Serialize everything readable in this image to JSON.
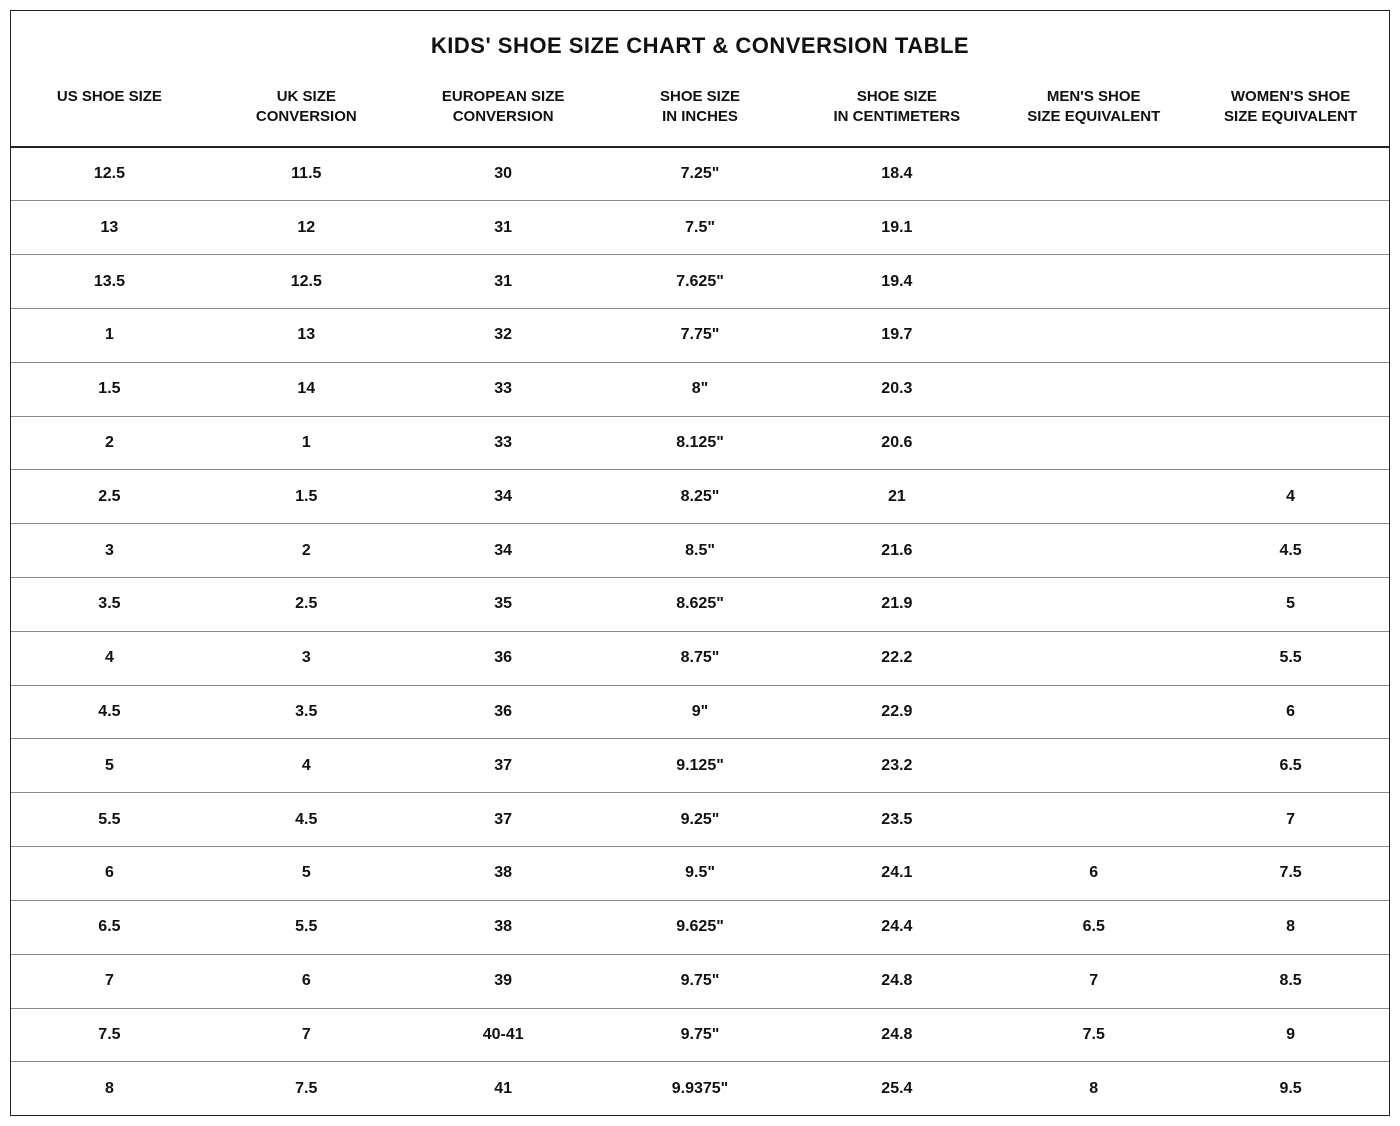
{
  "title": "KIDS' SHOE SIZE CHART & CONVERSION TABLE",
  "columns": [
    {
      "line1": "US SHOE SIZE",
      "line2": ""
    },
    {
      "line1": "UK SIZE",
      "line2": "CONVERSION"
    },
    {
      "line1": "EUROPEAN SIZE",
      "line2": "CONVERSION"
    },
    {
      "line1": "SHOE SIZE",
      "line2": "IN INCHES"
    },
    {
      "line1": "SHOE SIZE",
      "line2": "IN CENTIMETERS"
    },
    {
      "line1": "MEN'S SHOE",
      "line2": "SIZE EQUIVALENT"
    },
    {
      "line1": "WOMEN'S SHOE",
      "line2": "SIZE EQUIVALENT"
    }
  ],
  "rows": [
    [
      "12.5",
      "11.5",
      "30",
      "7.25\"",
      "18.4",
      "",
      ""
    ],
    [
      "13",
      "12",
      "31",
      "7.5\"",
      "19.1",
      "",
      ""
    ],
    [
      "13.5",
      "12.5",
      "31",
      "7.625\"",
      "19.4",
      "",
      ""
    ],
    [
      "1",
      "13",
      "32",
      "7.75\"",
      "19.7",
      "",
      ""
    ],
    [
      "1.5",
      "14",
      "33",
      "8\"",
      "20.3",
      "",
      ""
    ],
    [
      "2",
      "1",
      "33",
      "8.125\"",
      "20.6",
      "",
      ""
    ],
    [
      "2.5",
      "1.5",
      "34",
      "8.25\"",
      "21",
      "",
      "4"
    ],
    [
      "3",
      "2",
      "34",
      "8.5\"",
      "21.6",
      "",
      "4.5"
    ],
    [
      "3.5",
      "2.5",
      "35",
      "8.625\"",
      "21.9",
      "",
      "5"
    ],
    [
      "4",
      "3",
      "36",
      "8.75\"",
      "22.2",
      "",
      "5.5"
    ],
    [
      "4.5",
      "3.5",
      "36",
      "9\"",
      "22.9",
      "",
      "6"
    ],
    [
      "5",
      "4",
      "37",
      "9.125\"",
      "23.2",
      "",
      "6.5"
    ],
    [
      "5.5",
      "4.5",
      "37",
      "9.25\"",
      "23.5",
      "",
      "7"
    ],
    [
      "6",
      "5",
      "38",
      "9.5\"",
      "24.1",
      "6",
      "7.5"
    ],
    [
      "6.5",
      "5.5",
      "38",
      "9.625\"",
      "24.4",
      "6.5",
      "8"
    ],
    [
      "7",
      "6",
      "39",
      "9.75\"",
      "24.8",
      "7",
      "8.5"
    ],
    [
      "7.5",
      "7",
      "40-41",
      "9.75\"",
      "24.8",
      "7.5",
      "9"
    ],
    [
      "8",
      "7.5",
      "41",
      "9.9375\"",
      "25.4",
      "8",
      "9.5"
    ]
  ],
  "style": {
    "border_color": "#222222",
    "row_border_color": "#888888",
    "header_border_bottom": "#222222",
    "text_color": "#111111",
    "background_color": "#ffffff",
    "title_fontsize": 22,
    "header_fontsize": 15,
    "cell_fontsize": 16,
    "font_weight": 700,
    "num_columns": 7
  }
}
